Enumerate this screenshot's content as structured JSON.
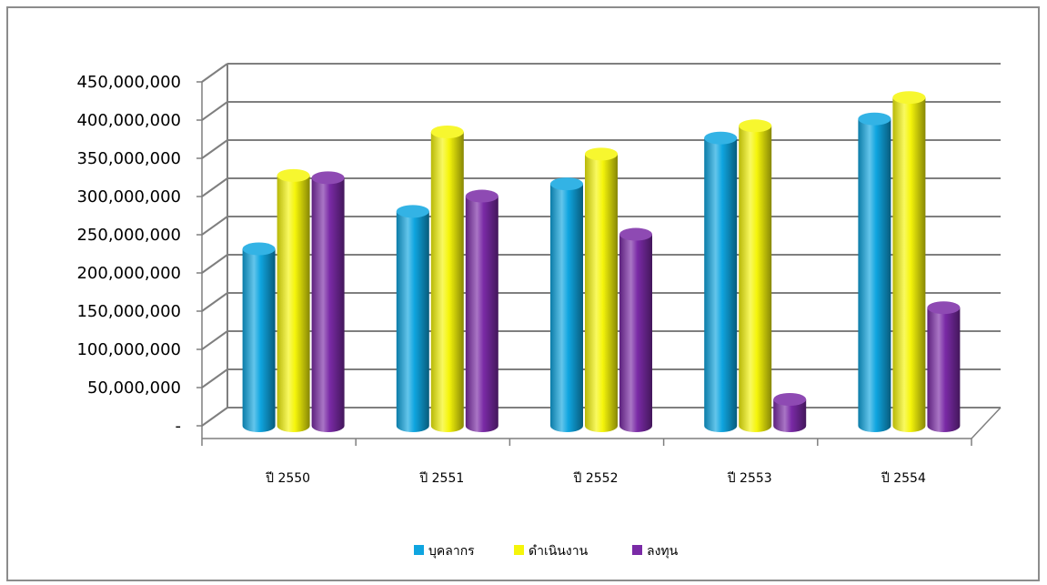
{
  "chart_data": {
    "type": "bar",
    "title": "",
    "xlabel": "",
    "ylabel": "",
    "categories": [
      "ปี 2550",
      "ปี 2551",
      "ปี 2552",
      "ปี 2553",
      "ปี 2554"
    ],
    "series": [
      {
        "name": "บุคลากร",
        "color": "#0fa5e0",
        "values": [
          222000000,
          271000000,
          307000000,
          367000000,
          392000000
        ]
      },
      {
        "name": "ดำเนินงาน",
        "color": "#f5f50a",
        "values": [
          318000000,
          375000000,
          346000000,
          383000000,
          420000000
        ]
      },
      {
        "name": "ลงทุน",
        "color": "#7a2aa6",
        "values": [
          315000000,
          291000000,
          241000000,
          25000000,
          145000000
        ]
      }
    ],
    "ylim": [
      0,
      450000000
    ],
    "ytick_labels": [
      "-",
      "50,000,000",
      "100,000,000",
      "150,000,000",
      "200,000,000",
      "250,000,000",
      "300,000,000",
      "350,000,000",
      "400,000,000",
      "450,000,000"
    ],
    "grid": true,
    "legend_position": "bottom",
    "style": "3d-cylinder"
  }
}
